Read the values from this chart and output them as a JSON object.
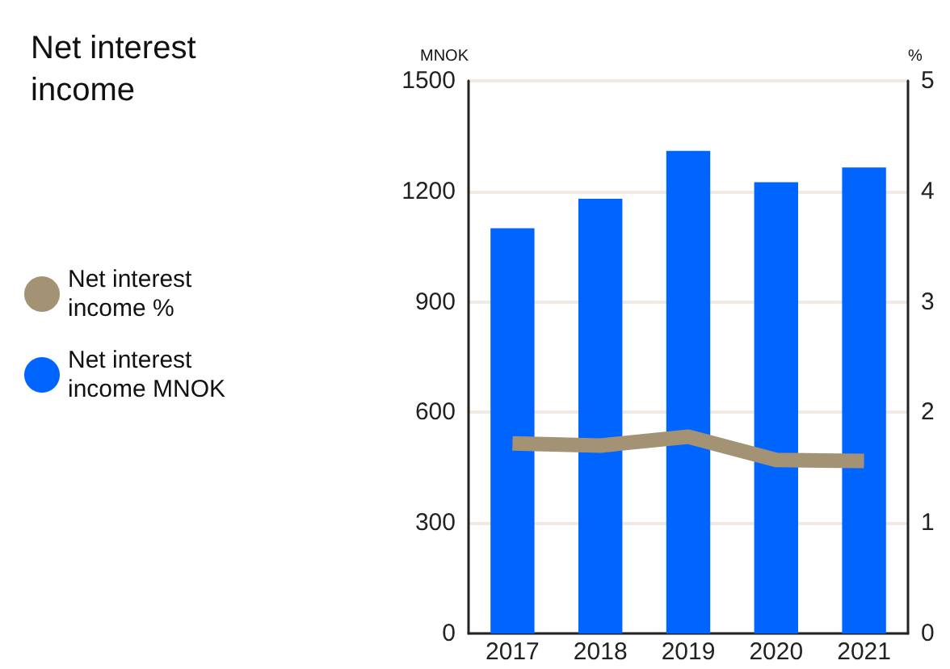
{
  "chart_data": {
    "type": "bar",
    "title": "Net interest income",
    "ylabel": "MNOK",
    "y2label": "%",
    "categories": [
      "2017",
      "2018",
      "2019",
      "2020",
      "2021"
    ],
    "series": [
      {
        "name": "Net interest income %",
        "type": "line",
        "axis": "y2",
        "color": "#a39274",
        "values": [
          1.72,
          1.7,
          1.78,
          1.57,
          1.56
        ]
      },
      {
        "name": "Net interest income MNOK",
        "color": "#0064ff",
        "values": [
          1100,
          1180,
          1310,
          1225,
          1265
        ]
      }
    ],
    "ylim": [
      0,
      1500
    ],
    "yticks": [
      0,
      300,
      600,
      900,
      1200,
      1500
    ],
    "y2lim": [
      0,
      5
    ],
    "y2ticks": [
      0,
      1,
      2,
      3,
      4,
      5
    ],
    "grid": "y",
    "legend": "left",
    "marker": "none"
  }
}
